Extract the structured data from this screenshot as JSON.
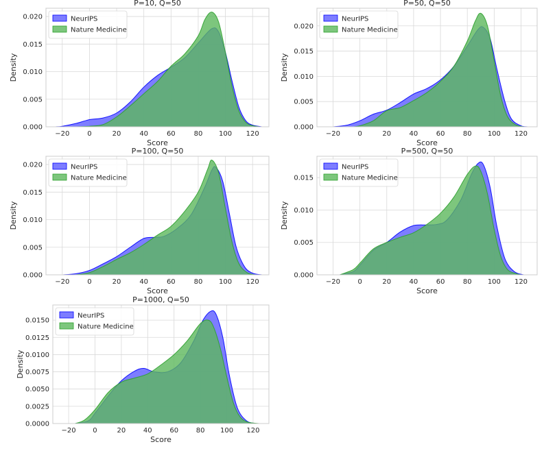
{
  "chart_data": [
    {
      "type": "area",
      "title": "P=10, Q=50",
      "xlabel": "Score",
      "ylabel": "Density",
      "xlim": [
        -32,
        132
      ],
      "ylim": [
        0,
        0.0215
      ],
      "xticks": [
        -20,
        0,
        20,
        40,
        60,
        80,
        100,
        120
      ],
      "xtick_labels": [
        "−20",
        "0",
        "20",
        "40",
        "60",
        "80",
        "100",
        "120"
      ],
      "yticks": [
        0,
        0.005,
        0.01,
        0.015,
        0.02
      ],
      "ytick_labels": [
        "0.000",
        "0.005",
        "0.010",
        "0.015",
        "0.020"
      ],
      "grid": true,
      "legend": "top-left",
      "series": [
        {
          "name": "NeurIPS",
          "color": "#0000ff",
          "points": [
            [
              -25,
              0
            ],
            [
              -20,
              0.0001
            ],
            [
              -10,
              0.0006
            ],
            [
              0,
              0.0013
            ],
            [
              10,
              0.0016
            ],
            [
              20,
              0.0025
            ],
            [
              30,
              0.0045
            ],
            [
              40,
              0.0072
            ],
            [
              50,
              0.0093
            ],
            [
              60,
              0.0108
            ],
            [
              70,
              0.0125
            ],
            [
              80,
              0.0152
            ],
            [
              90,
              0.0178
            ],
            [
              95,
              0.0172
            ],
            [
              100,
              0.0135
            ],
            [
              105,
              0.0082
            ],
            [
              110,
              0.0035
            ],
            [
              115,
              0.0011
            ],
            [
              120,
              0.0003
            ],
            [
              127,
              0
            ]
          ]
        },
        {
          "name": "Nature Medicine",
          "color": "#2ca02c",
          "points": [
            [
              -10,
              0
            ],
            [
              0,
              0.0001
            ],
            [
              10,
              0.0004
            ],
            [
              20,
              0.0018
            ],
            [
              30,
              0.0038
            ],
            [
              40,
              0.006
            ],
            [
              50,
              0.0082
            ],
            [
              60,
              0.011
            ],
            [
              70,
              0.0132
            ],
            [
              80,
              0.0165
            ],
            [
              85,
              0.0195
            ],
            [
              90,
              0.0208
            ],
            [
              95,
              0.019
            ],
            [
              100,
              0.0135
            ],
            [
              105,
              0.0072
            ],
            [
              110,
              0.0028
            ],
            [
              115,
              0.0008
            ],
            [
              120,
              0.0002
            ],
            [
              125,
              0
            ]
          ]
        }
      ]
    },
    {
      "type": "area",
      "title": "P=50, Q=50",
      "xlabel": "Score",
      "ylabel": "Density",
      "xlim": [
        -32,
        132
      ],
      "ylim": [
        0,
        0.0235
      ],
      "xticks": [
        -20,
        0,
        20,
        40,
        60,
        80,
        100,
        120
      ],
      "xtick_labels": [
        "−20",
        "0",
        "20",
        "40",
        "60",
        "80",
        "100",
        "120"
      ],
      "yticks": [
        0,
        0.005,
        0.01,
        0.015,
        0.02
      ],
      "ytick_labels": [
        "0.000",
        "0.005",
        "0.010",
        "0.015",
        "0.020"
      ],
      "grid": true,
      "legend": "top-left",
      "series": [
        {
          "name": "NeurIPS",
          "color": "#0000ff",
          "points": [
            [
              -20,
              0
            ],
            [
              -10,
              0.0003
            ],
            [
              0,
              0.0012
            ],
            [
              10,
              0.0025
            ],
            [
              20,
              0.0033
            ],
            [
              30,
              0.0048
            ],
            [
              40,
              0.0065
            ],
            [
              50,
              0.0076
            ],
            [
              60,
              0.0093
            ],
            [
              70,
              0.012
            ],
            [
              80,
              0.016
            ],
            [
              88,
              0.0193
            ],
            [
              92,
              0.0197
            ],
            [
              97,
              0.0175
            ],
            [
              102,
              0.0115
            ],
            [
              108,
              0.005
            ],
            [
              113,
              0.0015
            ],
            [
              120,
              0.0002
            ],
            [
              125,
              0
            ]
          ]
        },
        {
          "name": "Nature Medicine",
          "color": "#2ca02c",
          "points": [
            [
              -5,
              0
            ],
            [
              0,
              0.0002
            ],
            [
              10,
              0.0012
            ],
            [
              20,
              0.0032
            ],
            [
              30,
              0.0038
            ],
            [
              40,
              0.0052
            ],
            [
              50,
              0.0068
            ],
            [
              60,
              0.009
            ],
            [
              70,
              0.012
            ],
            [
              80,
              0.017
            ],
            [
              86,
              0.021
            ],
            [
              90,
              0.0225
            ],
            [
              95,
              0.02
            ],
            [
              100,
              0.013
            ],
            [
              105,
              0.006
            ],
            [
              110,
              0.002
            ],
            [
              116,
              0.0004
            ],
            [
              122,
              0
            ]
          ]
        }
      ]
    },
    {
      "type": "area",
      "title": "P=100, Q=50",
      "xlabel": "Score",
      "ylabel": "Density",
      "xlim": [
        -32,
        132
      ],
      "ylim": [
        0,
        0.0215
      ],
      "xticks": [
        -20,
        0,
        20,
        40,
        60,
        80,
        100,
        120
      ],
      "xtick_labels": [
        "−20",
        "0",
        "20",
        "40",
        "60",
        "80",
        "100",
        "120"
      ],
      "yticks": [
        0,
        0.005,
        0.01,
        0.015,
        0.02
      ],
      "ytick_labels": [
        "0.000",
        "0.005",
        "0.010",
        "0.015",
        "0.020"
      ],
      "grid": true,
      "legend": "top-left",
      "series": [
        {
          "name": "NeurIPS",
          "color": "#0000ff",
          "points": [
            [
              -20,
              0
            ],
            [
              -10,
              0.0002
            ],
            [
              0,
              0.0008
            ],
            [
              10,
              0.002
            ],
            [
              20,
              0.0033
            ],
            [
              30,
              0.005
            ],
            [
              40,
              0.0066
            ],
            [
              48,
              0.0068
            ],
            [
              55,
              0.007
            ],
            [
              65,
              0.0085
            ],
            [
              75,
              0.011
            ],
            [
              85,
              0.016
            ],
            [
              90,
              0.019
            ],
            [
              93,
              0.0195
            ],
            [
              98,
              0.017
            ],
            [
              103,
              0.011
            ],
            [
              108,
              0.005
            ],
            [
              114,
              0.0015
            ],
            [
              120,
              0.0003
            ],
            [
              127,
              0
            ]
          ]
        },
        {
          "name": "Nature Medicine",
          "color": "#2ca02c",
          "points": [
            [
              -10,
              0
            ],
            [
              0,
              0.0004
            ],
            [
              10,
              0.0015
            ],
            [
              20,
              0.0028
            ],
            [
              30,
              0.004
            ],
            [
              40,
              0.0055
            ],
            [
              50,
              0.0072
            ],
            [
              60,
              0.0088
            ],
            [
              70,
              0.0115
            ],
            [
              80,
              0.015
            ],
            [
              87,
              0.0192
            ],
            [
              90,
              0.0208
            ],
            [
              95,
              0.0185
            ],
            [
              100,
              0.012
            ],
            [
              105,
              0.0058
            ],
            [
              110,
              0.002
            ],
            [
              116,
              0.0004
            ],
            [
              122,
              0
            ]
          ]
        }
      ]
    },
    {
      "type": "area",
      "title": "P=500, Q=50",
      "xlabel": "Score",
      "ylabel": "Density",
      "xlim": [
        -32,
        132
      ],
      "ylim": [
        0,
        0.0183
      ],
      "xticks": [
        -20,
        0,
        20,
        40,
        60,
        80,
        100,
        120
      ],
      "xtick_labels": [
        "−20",
        "0",
        "20",
        "40",
        "60",
        "80",
        "100",
        "120"
      ],
      "yticks": [
        0,
        0.005,
        0.01,
        0.015
      ],
      "ytick_labels": [
        "0.000",
        "0.005",
        "0.010",
        "0.015"
      ],
      "grid": true,
      "legend": "top-left",
      "series": [
        {
          "name": "NeurIPS",
          "color": "#0000ff",
          "points": [
            [
              -15,
              0
            ],
            [
              -5,
              0.0005
            ],
            [
              0,
              0.0015
            ],
            [
              10,
              0.0038
            ],
            [
              20,
              0.005
            ],
            [
              30,
              0.0066
            ],
            [
              40,
              0.0076
            ],
            [
              50,
              0.0077
            ],
            [
              58,
              0.0078
            ],
            [
              65,
              0.0085
            ],
            [
              75,
              0.0115
            ],
            [
              83,
              0.0155
            ],
            [
              88,
              0.0172
            ],
            [
              92,
              0.017
            ],
            [
              97,
              0.0135
            ],
            [
              102,
              0.0075
            ],
            [
              108,
              0.0025
            ],
            [
              115,
              0.0005
            ],
            [
              122,
              0
            ]
          ]
        },
        {
          "name": "Nature Medicine",
          "color": "#2ca02c",
          "points": [
            [
              -15,
              0
            ],
            [
              -5,
              0.0008
            ],
            [
              0,
              0.0018
            ],
            [
              10,
              0.004
            ],
            [
              20,
              0.005
            ],
            [
              30,
              0.0058
            ],
            [
              40,
              0.0065
            ],
            [
              50,
              0.0078
            ],
            [
              60,
              0.0095
            ],
            [
              70,
              0.012
            ],
            [
              80,
              0.0155
            ],
            [
              86,
              0.0168
            ],
            [
              90,
              0.016
            ],
            [
              95,
              0.0125
            ],
            [
              100,
              0.007
            ],
            [
              105,
              0.0028
            ],
            [
              110,
              0.0008
            ],
            [
              116,
              0.0002
            ],
            [
              120,
              0
            ]
          ]
        }
      ]
    },
    {
      "type": "area",
      "title": "P=1000, Q=50",
      "xlabel": "Score",
      "ylabel": "Density",
      "xlim": [
        -32,
        132
      ],
      "ylim": [
        0,
        0.0172
      ],
      "xticks": [
        -20,
        0,
        20,
        40,
        60,
        80,
        100,
        120
      ],
      "xtick_labels": [
        "−20",
        "0",
        "20",
        "40",
        "60",
        "80",
        "100",
        "120"
      ],
      "yticks": [
        0,
        0.0025,
        0.005,
        0.0075,
        0.01,
        0.0125,
        0.015
      ],
      "ytick_labels": [
        "0.0000",
        "0.0025",
        "0.0050",
        "0.0075",
        "0.0100",
        "0.0125",
        "0.0150"
      ],
      "grid": true,
      "legend": "top-left",
      "series": [
        {
          "name": "NeurIPS",
          "color": "#0000ff",
          "points": [
            [
              -15,
              0
            ],
            [
              -5,
              0.0004
            ],
            [
              0,
              0.0015
            ],
            [
              10,
              0.004
            ],
            [
              20,
              0.0062
            ],
            [
              30,
              0.0076
            ],
            [
              37,
              0.008
            ],
            [
              45,
              0.0075
            ],
            [
              55,
              0.0075
            ],
            [
              65,
              0.0088
            ],
            [
              75,
              0.012
            ],
            [
              82,
              0.015
            ],
            [
              88,
              0.0163
            ],
            [
              92,
              0.0158
            ],
            [
              97,
              0.0125
            ],
            [
              102,
              0.007
            ],
            [
              108,
              0.0023
            ],
            [
              115,
              0.0004
            ],
            [
              122,
              0
            ]
          ]
        },
        {
          "name": "Nature Medicine",
          "color": "#2ca02c",
          "points": [
            [
              -15,
              0
            ],
            [
              -8,
              0.0005
            ],
            [
              0,
              0.002
            ],
            [
              10,
              0.0045
            ],
            [
              20,
              0.006
            ],
            [
              30,
              0.0066
            ],
            [
              40,
              0.0072
            ],
            [
              50,
              0.0085
            ],
            [
              60,
              0.01
            ],
            [
              70,
              0.012
            ],
            [
              80,
              0.0145
            ],
            [
              86,
              0.015
            ],
            [
              90,
              0.014
            ],
            [
              95,
              0.011
            ],
            [
              100,
              0.0068
            ],
            [
              105,
              0.003
            ],
            [
              110,
              0.001
            ],
            [
              116,
              0.0002
            ],
            [
              125,
              0
            ]
          ]
        }
      ]
    }
  ]
}
